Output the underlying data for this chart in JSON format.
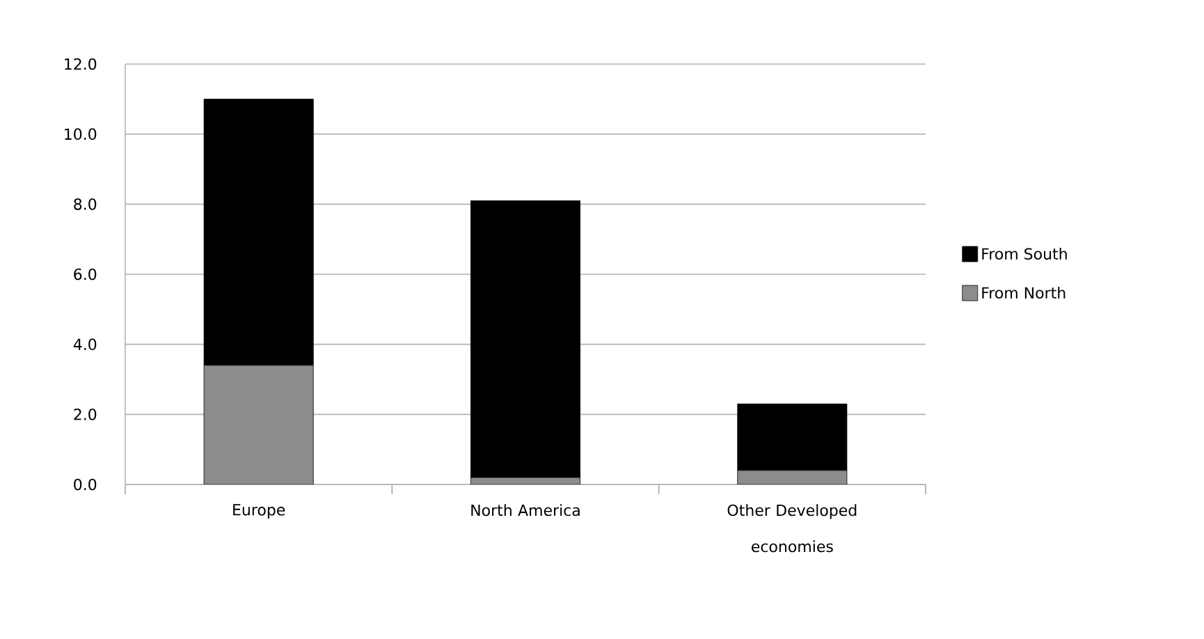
{
  "chart_data": {
    "type": "bar",
    "stacked": true,
    "categories": [
      "Europe",
      "North America",
      "Other Developed economies"
    ],
    "series": [
      {
        "name": "From North",
        "color": "#8c8c8c",
        "values": [
          3.4,
          0.2,
          0.4
        ]
      },
      {
        "name": "From South",
        "color": "#000000",
        "values": [
          7.6,
          7.9,
          1.9
        ]
      }
    ],
    "ylim": [
      0,
      12
    ],
    "yticks": [
      {
        "value": 0,
        "label": "0.0"
      },
      {
        "value": 2,
        "label": "2.0"
      },
      {
        "value": 4,
        "label": "4.0"
      },
      {
        "value": 6,
        "label": "6.0"
      },
      {
        "value": 8,
        "label": "8.0"
      },
      {
        "value": 10,
        "label": "10.0"
      },
      {
        "value": 12,
        "label": "12.0"
      }
    ],
    "grid": "y",
    "legend": "right"
  }
}
